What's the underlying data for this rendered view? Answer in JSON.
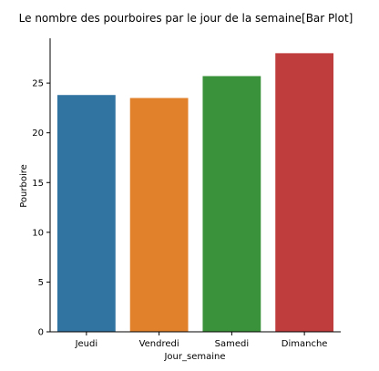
{
  "chart_data": {
    "type": "bar",
    "title": "Le nombre des pourboires par le jour de la semaine[Bar Plot]",
    "xlabel": "Jour_semaine",
    "ylabel": "Pourboire",
    "categories": [
      "Jeudi",
      "Vendredi",
      "Samedi",
      "Dimanche"
    ],
    "values": [
      23.8,
      23.5,
      25.7,
      28.0
    ],
    "colors": [
      "#3274a1",
      "#e1812c",
      "#3a923a",
      "#c03d3e"
    ],
    "ylim": [
      0,
      29.5
    ],
    "yticks": [
      0,
      5,
      10,
      15,
      20,
      25
    ],
    "grid": false,
    "legend": "none"
  }
}
